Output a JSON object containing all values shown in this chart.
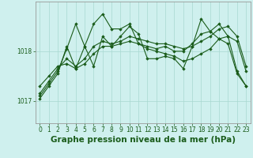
{
  "bg_color": "#cff0ee",
  "grid_color": "#a8d8d0",
  "line_color": "#1a5c1a",
  "marker_color": "#1a5c1a",
  "xlabel": "Graphe pression niveau de la mer (hPa)",
  "xlabel_fontsize": 7.5,
  "tick_fontsize": 5.5,
  "xlim": [
    -0.5,
    23.5
  ],
  "ylim": [
    1016.55,
    1019.0
  ],
  "yticks": [
    1017,
    1018
  ],
  "xticks": [
    0,
    1,
    2,
    3,
    4,
    5,
    6,
    7,
    8,
    9,
    10,
    11,
    12,
    13,
    14,
    15,
    16,
    17,
    18,
    19,
    20,
    21,
    22,
    23
  ],
  "series": [
    [
      1017.05,
      1017.3,
      1017.55,
      1018.1,
      1017.65,
      1018.1,
      1017.7,
      1018.3,
      1018.1,
      1018.3,
      1018.5,
      1018.35,
      1017.85,
      1017.85,
      1017.9,
      1017.85,
      1017.65,
      1018.1,
      1018.65,
      1018.4,
      1018.55,
      1018.3,
      1017.6,
      1017.3
    ],
    [
      1017.15,
      1017.4,
      1017.65,
      1017.85,
      1017.7,
      1017.85,
      1018.1,
      1018.2,
      1018.15,
      1018.2,
      1018.3,
      1018.25,
      1018.2,
      1018.15,
      1018.15,
      1018.1,
      1018.05,
      1018.1,
      1018.2,
      1018.3,
      1018.45,
      1018.5,
      1018.3,
      1017.7
    ],
    [
      1017.3,
      1017.5,
      1017.7,
      1017.75,
      1017.65,
      1017.75,
      1017.95,
      1018.1,
      1018.1,
      1018.15,
      1018.2,
      1018.15,
      1018.05,
      1018.0,
      1017.95,
      1017.9,
      1017.8,
      1017.85,
      1017.95,
      1018.05,
      1018.25,
      1018.3,
      1018.2,
      1017.6
    ],
    [
      1017.1,
      1017.35,
      1017.6,
      1018.05,
      1018.55,
      1018.1,
      1018.55,
      1018.75,
      1018.45,
      1018.45,
      1018.55,
      1018.15,
      1018.1,
      1018.05,
      1018.1,
      1018.0,
      1018.0,
      1018.15,
      1018.35,
      1018.4,
      1018.25,
      1018.15,
      1017.55,
      1017.3
    ]
  ]
}
